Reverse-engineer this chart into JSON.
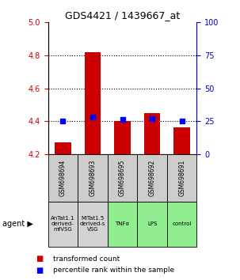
{
  "title": "GDS4421 / 1439667_at",
  "samples": [
    "GSM698694",
    "GSM698693",
    "GSM698695",
    "GSM698692",
    "GSM698691"
  ],
  "agents": [
    "AnTat1.1\nderived-\nmfVSG",
    "MITat1.5\nderived-s\nVSG",
    "TNFα",
    "LPS",
    "control"
  ],
  "agent_colors": [
    "#d3d3d3",
    "#d3d3d3",
    "#90ee90",
    "#90ee90",
    "#90ee90"
  ],
  "red_values": [
    4.27,
    4.82,
    4.4,
    4.45,
    4.36
  ],
  "blue_percentiles": [
    25,
    28,
    26,
    27,
    25
  ],
  "ylim_left": [
    4.2,
    5.0
  ],
  "ylim_right": [
    0,
    100
  ],
  "yticks_left": [
    4.2,
    4.4,
    4.6,
    4.8,
    5.0
  ],
  "yticks_right": [
    0,
    25,
    50,
    75,
    100
  ],
  "left_color": "#cc0000",
  "right_color": "#0000cc",
  "bar_bottom": 4.2,
  "legend_red": "transformed count",
  "legend_blue": "percentile rank within the sample",
  "fig_width": 3.03,
  "fig_height": 3.54,
  "dpi": 100
}
